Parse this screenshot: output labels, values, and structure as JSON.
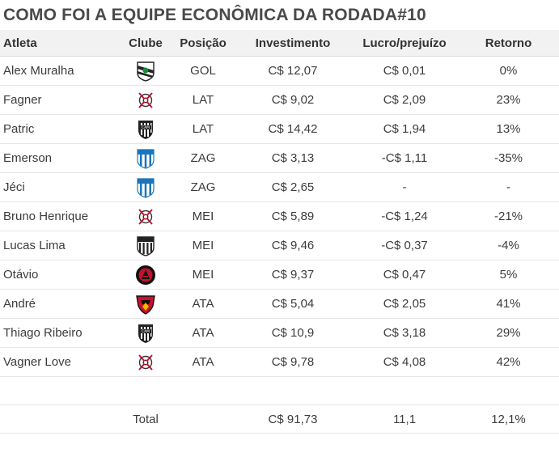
{
  "title": "COMO FOI A EQUIPE ECONÔMICA DA RODADA#10",
  "columns": {
    "atleta": "Atleta",
    "clube": "Clube",
    "posicao": "Posição",
    "investimento": "Investimento",
    "lucro": "Lucro/prejuízo",
    "retorno": "Retorno"
  },
  "rows": [
    {
      "atleta": "Alex Muralha",
      "clube_icon": "figueirense-crest-icon",
      "posicao": "GOL",
      "investimento": "C$ 12,07",
      "lucro": "C$ 0,01",
      "retorno": "0%"
    },
    {
      "atleta": "Fagner",
      "clube_icon": "corinthians-crest-icon",
      "posicao": "LAT",
      "investimento": "C$ 9,02",
      "lucro": "C$ 2,09",
      "retorno": "23%"
    },
    {
      "atleta": "Patric",
      "clube_icon": "atletico-mg-crest-icon",
      "posicao": "LAT",
      "investimento": "C$ 14,42",
      "lucro": "C$ 1,94",
      "retorno": "13%"
    },
    {
      "atleta": "Emerson",
      "clube_icon": "avai-crest-icon",
      "posicao": "ZAG",
      "investimento": "C$ 3,13",
      "lucro": "-C$ 1,11",
      "retorno": "-35%"
    },
    {
      "atleta": "Jéci",
      "clube_icon": "avai-crest-icon",
      "posicao": "ZAG",
      "investimento": "C$ 2,65",
      "lucro": "-",
      "retorno": "-"
    },
    {
      "atleta": "Bruno Henrique",
      "clube_icon": "corinthians-crest-icon",
      "posicao": "MEI",
      "investimento": "C$ 5,89",
      "lucro": "-C$ 1,24",
      "retorno": "-21%"
    },
    {
      "atleta": "Lucas Lima",
      "clube_icon": "santos-crest-icon",
      "posicao": "MEI",
      "investimento": "C$ 9,46",
      "lucro": "-C$ 0,37",
      "retorno": "-4%"
    },
    {
      "atleta": "Otávio",
      "clube_icon": "atletico-pr-crest-icon",
      "posicao": "MEI",
      "investimento": "C$ 9,37",
      "lucro": "C$ 0,47",
      "retorno": "5%"
    },
    {
      "atleta": "André",
      "clube_icon": "sport-crest-icon",
      "posicao": "ATA",
      "investimento": "C$ 5,04",
      "lucro": "C$ 2,05",
      "retorno": "41%"
    },
    {
      "atleta": "Thiago Ribeiro",
      "clube_icon": "atletico-mg-crest-icon",
      "posicao": "ATA",
      "investimento": "C$ 10,9",
      "lucro": "C$ 3,18",
      "retorno": "29%"
    },
    {
      "atleta": "Vagner Love",
      "clube_icon": "corinthians-crest-icon",
      "posicao": "ATA",
      "investimento": "C$ 9,78",
      "lucro": "C$ 4,08",
      "retorno": "42%"
    }
  ],
  "total": {
    "label": "Total",
    "investimento": "C$ 91,73",
    "lucro": "11,1",
    "retorno": "12,1%"
  }
}
